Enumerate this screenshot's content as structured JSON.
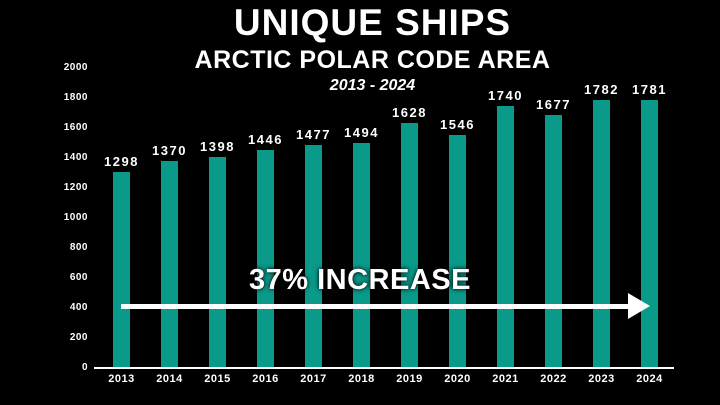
{
  "slide": {
    "background_color": "#000000",
    "text_color": "#ffffff"
  },
  "chart_data": {
    "type": "bar",
    "title": "UNIQUE SHIPS",
    "subtitle": "ARCTIC POLAR CODE AREA",
    "date_range": "2013 - 2024",
    "categories": [
      "2013",
      "2014",
      "2015",
      "2016",
      "2017",
      "2018",
      "2019",
      "2020",
      "2021",
      "2022",
      "2023",
      "2024"
    ],
    "values": [
      1298,
      1370,
      1398,
      1446,
      1477,
      1494,
      1628,
      1546,
      1740,
      1677,
      1782,
      1781
    ],
    "bar_color": "#0a9a8a",
    "xlabel": "",
    "ylabel": "",
    "ylim": [
      0,
      2000
    ],
    "yticks": [
      0,
      200,
      400,
      600,
      800,
      1000,
      1200,
      1400,
      1600,
      1800,
      2000
    ],
    "grid": false,
    "legend": "none",
    "value_labels_shown": true,
    "annotation": {
      "text": "37% INCREASE",
      "arrow_color": "#ffffff"
    }
  }
}
